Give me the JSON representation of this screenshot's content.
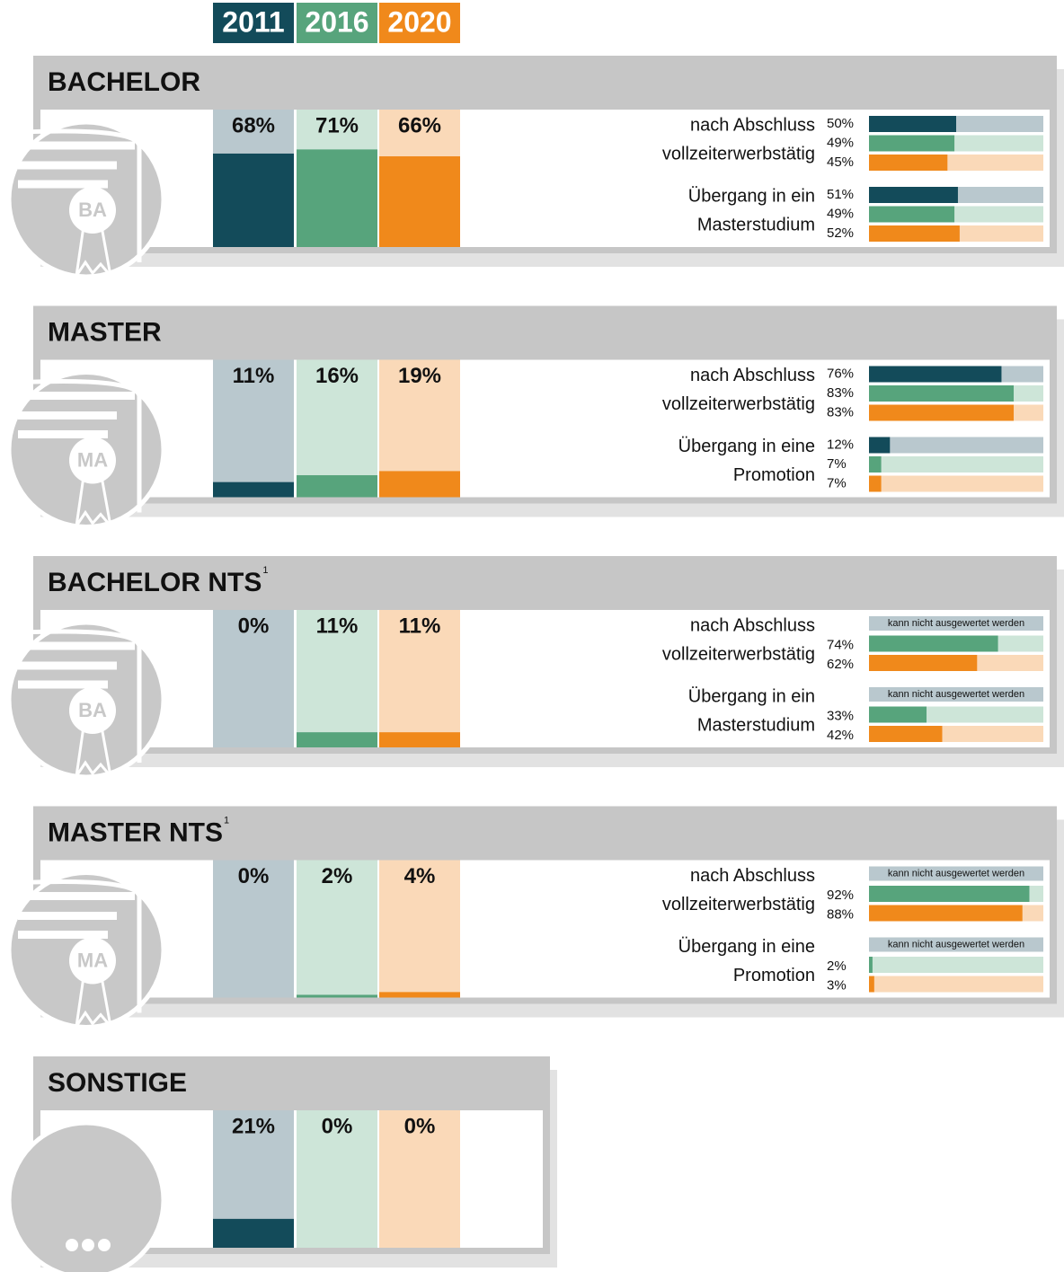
{
  "legend": [
    {
      "label": "2011",
      "color": "#134b5a",
      "light": "#b9c8ce"
    },
    {
      "label": "2016",
      "color": "#57a47c",
      "light": "#cde5d8"
    },
    {
      "label": "2020",
      "color": "#f0891b",
      "light": "#fad9b8"
    }
  ],
  "ylim": [
    0,
    100
  ],
  "panels": [
    {
      "title": "BACHELOR",
      "icon": "BA",
      "values": [
        68,
        71,
        66
      ],
      "value_labels": [
        "68%",
        "71%",
        "66%"
      ],
      "metrics": [
        {
          "label": [
            "nach Abschluss",
            "vollzeiterwerbstätig"
          ],
          "values": [
            50,
            49,
            45
          ],
          "value_labels": [
            "50%",
            "49%",
            "45%"
          ]
        },
        {
          "label": [
            "Übergang in ein",
            "Masterstudium"
          ],
          "values": [
            51,
            49,
            52
          ],
          "value_labels": [
            "51%",
            "49%",
            "52%"
          ]
        }
      ]
    },
    {
      "title": "MASTER",
      "icon": "MA",
      "values": [
        11,
        16,
        19
      ],
      "value_labels": [
        "11%",
        "16%",
        "19%"
      ],
      "metrics": [
        {
          "label": [
            "nach Abschluss",
            "vollzeiterwerbstätig"
          ],
          "values": [
            76,
            83,
            83
          ],
          "value_labels": [
            "76%",
            "83%",
            "83%"
          ]
        },
        {
          "label": [
            "Übergang in eine",
            "Promotion"
          ],
          "values": [
            12,
            7,
            7
          ],
          "value_labels": [
            "12%",
            "7%",
            "7%"
          ]
        }
      ]
    },
    {
      "title": "BACHELOR NTS",
      "footnote": "1",
      "icon": "BA",
      "values": [
        0,
        11,
        11
      ],
      "value_labels": [
        "0%",
        "11%",
        "11%"
      ],
      "metrics": [
        {
          "label": [
            "nach Abschluss",
            "vollzeiterwerbstätig"
          ],
          "values": [
            null,
            74,
            62
          ],
          "value_labels": [
            null,
            "74%",
            "62%"
          ],
          "missing_label": "kann nicht ausgewertet werden"
        },
        {
          "label": [
            "Übergang in ein",
            "Masterstudium"
          ],
          "values": [
            null,
            33,
            42
          ],
          "value_labels": [
            null,
            "33%",
            "42%"
          ],
          "missing_label": "kann nicht ausgewertet werden"
        }
      ]
    },
    {
      "title": "MASTER NTS",
      "footnote": "1",
      "icon": "MA",
      "values": [
        0,
        2,
        4
      ],
      "value_labels": [
        "0%",
        "2%",
        "4%"
      ],
      "metrics": [
        {
          "label": [
            "nach Abschluss",
            "vollzeiterwerbstätig"
          ],
          "values": [
            null,
            92,
            88
          ],
          "value_labels": [
            null,
            "92%",
            "88%"
          ],
          "missing_label": "kann nicht ausgewertet werden"
        },
        {
          "label": [
            "Übergang in eine",
            "Promotion"
          ],
          "values": [
            null,
            2,
            3
          ],
          "value_labels": [
            null,
            "2%",
            "3%"
          ],
          "missing_label": "kann nicht ausgewertet werden"
        }
      ]
    },
    {
      "title": "SONSTIGE",
      "values": [
        21,
        0,
        0
      ],
      "value_labels": [
        "21%",
        "0%",
        "0%"
      ]
    }
  ]
}
